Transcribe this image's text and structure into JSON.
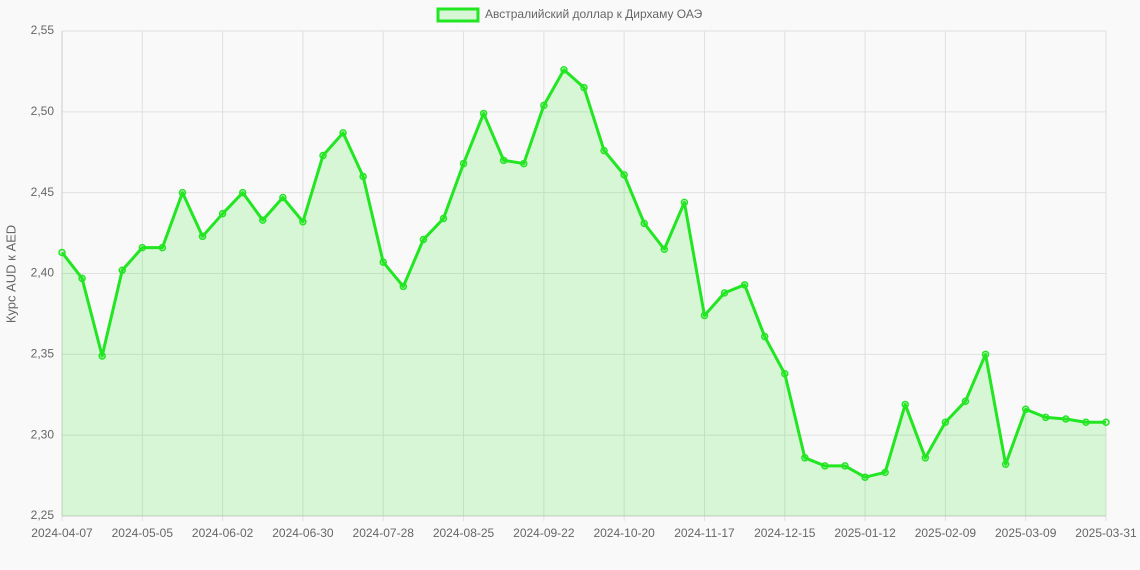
{
  "chart_data": {
    "type": "line",
    "legend_label": "Австралийский доллар к Дирхаму ОАЭ",
    "y_label": "Курс AUD к AED",
    "categories": [
      "2024-04-07",
      null,
      null,
      null,
      "2024-05-05",
      null,
      null,
      null,
      "2024-06-02",
      null,
      null,
      null,
      "2024-06-30",
      null,
      null,
      null,
      "2024-07-28",
      null,
      null,
      null,
      "2024-08-25",
      null,
      null,
      null,
      "2024-09-22",
      null,
      null,
      null,
      "2024-10-20",
      null,
      null,
      null,
      "2024-11-17",
      null,
      null,
      null,
      "2024-12-15",
      null,
      null,
      null,
      "2025-01-12",
      null,
      null,
      null,
      "2025-02-09",
      null,
      null,
      null,
      "2025-03-09",
      null,
      null,
      null,
      "2025-03-31"
    ],
    "values": [
      2.413,
      2.397,
      2.349,
      2.402,
      2.416,
      2.416,
      2.45,
      2.423,
      2.437,
      2.45,
      2.433,
      2.447,
      2.432,
      2.473,
      2.487,
      2.46,
      2.407,
      2.392,
      2.421,
      2.434,
      2.468,
      2.499,
      2.47,
      2.468,
      2.504,
      2.526,
      2.515,
      2.476,
      2.461,
      2.431,
      2.415,
      2.444,
      2.374,
      2.388,
      2.393,
      2.361,
      2.338,
      2.286,
      2.281,
      2.281,
      2.274,
      2.277,
      2.319,
      2.286,
      2.308,
      2.321,
      2.35,
      2.282,
      2.316,
      2.311,
      2.31,
      2.308,
      2.308
    ],
    "color": "#22e622",
    "fill_color": "rgba(34,230,34,0.16)",
    "ylim": [
      2.25,
      2.55
    ],
    "yticks": [
      {
        "value": 2.25,
        "label": "2,25"
      },
      {
        "value": 2.3,
        "label": "2,30"
      },
      {
        "value": 2.35,
        "label": "2,35"
      },
      {
        "value": 2.4,
        "label": "2,40"
      },
      {
        "value": 2.45,
        "label": "2,45"
      },
      {
        "value": 2.5,
        "label": "2,50"
      },
      {
        "value": 2.55,
        "label": "2,55"
      }
    ],
    "grid": true
  }
}
